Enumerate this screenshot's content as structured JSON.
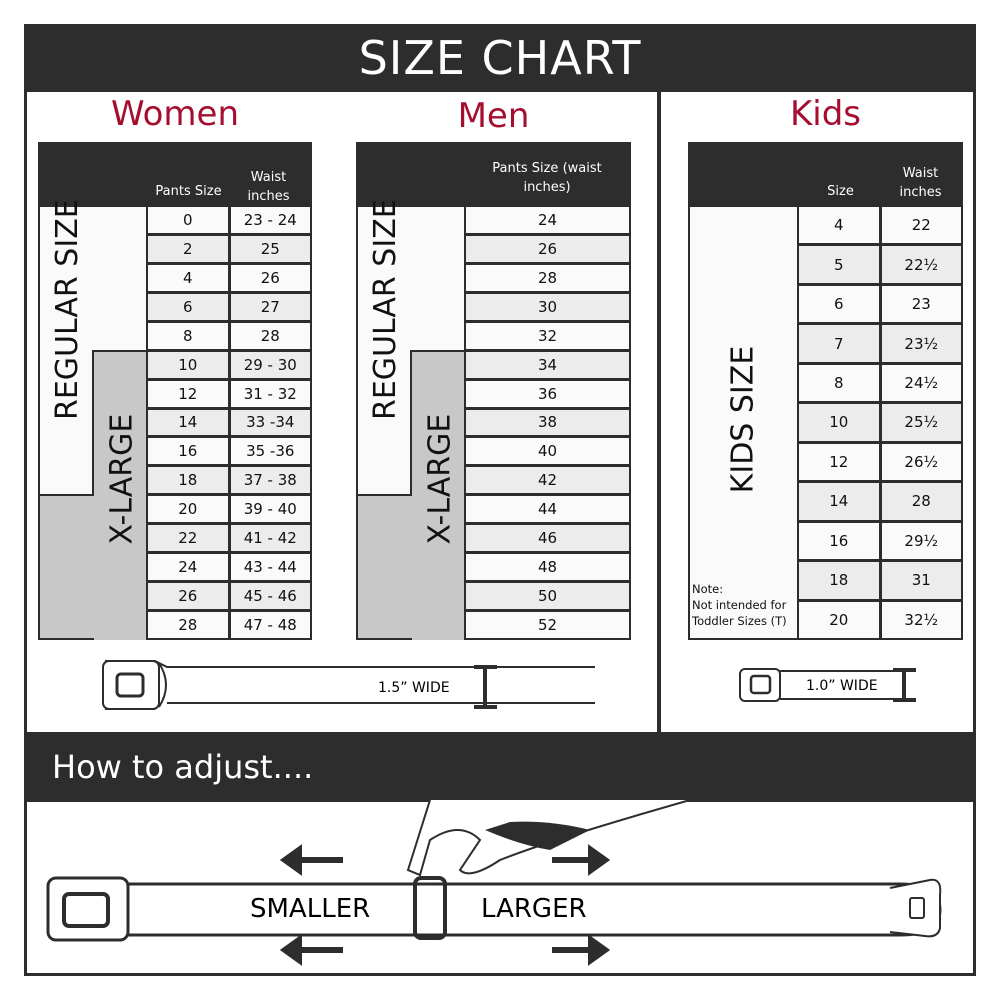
{
  "title": "SIZE CHART",
  "women": {
    "title": "Women",
    "headers": [
      "Pants Size",
      "Waist inches"
    ],
    "regular_label": "REGULAR SIZE",
    "xlarge_label": "X-LARGE",
    "rows": [
      [
        "0",
        "23 - 24"
      ],
      [
        "2",
        "25"
      ],
      [
        "4",
        "26"
      ],
      [
        "6",
        "27"
      ],
      [
        "8",
        "28"
      ],
      [
        "10",
        "29 - 30"
      ],
      [
        "12",
        "31 - 32"
      ],
      [
        "14",
        "33 -34"
      ],
      [
        "16",
        "35 -36"
      ],
      [
        "18",
        "37 - 38"
      ],
      [
        "20",
        "39 - 40"
      ],
      [
        "22",
        "41 - 42"
      ],
      [
        "24",
        "43 - 44"
      ],
      [
        "26",
        "45 - 46"
      ],
      [
        "28",
        "47 - 48"
      ]
    ],
    "width_label": "1.5” WIDE"
  },
  "men": {
    "title": "Men",
    "header": "Pants Size (waist inches)",
    "regular_label": "REGULAR SIZE",
    "xlarge_label": "X-LARGE",
    "rows": [
      "24",
      "26",
      "28",
      "30",
      "32",
      "34",
      "36",
      "38",
      "40",
      "42",
      "44",
      "46",
      "48",
      "50",
      "52"
    ]
  },
  "kids": {
    "title": "Kids",
    "headers": [
      "Size",
      "Waist inches"
    ],
    "label": "KIDS SIZE",
    "note_title": "Note:",
    "note": "Not intended for Toddler Sizes (T)",
    "rows": [
      [
        "4",
        "22"
      ],
      [
        "5",
        "22½"
      ],
      [
        "6",
        "23"
      ],
      [
        "7",
        "23½"
      ],
      [
        "8",
        "24½"
      ],
      [
        "10",
        "25½"
      ],
      [
        "12",
        "26½"
      ],
      [
        "14",
        "28"
      ],
      [
        "16",
        "29½"
      ],
      [
        "18",
        "31"
      ],
      [
        "20",
        "32½"
      ]
    ],
    "width_label": "1.0” WIDE"
  },
  "adjust": {
    "title": "How to adjust....",
    "smaller": "SMALLER",
    "larger": "LARGER"
  },
  "colors": {
    "dark": "#2d2d2d",
    "accent": "#a50e2f",
    "gray": "#c8c8c8"
  }
}
